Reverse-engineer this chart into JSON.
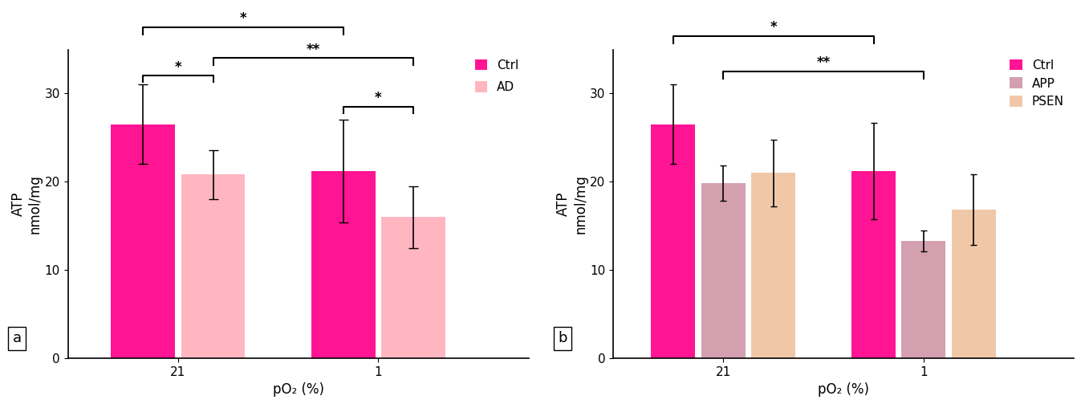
{
  "panel_a": {
    "groups": [
      "21",
      "1"
    ],
    "series": [
      "Ctrl",
      "AD"
    ],
    "values": [
      [
        26.5,
        20.8
      ],
      [
        21.2,
        16.0
      ]
    ],
    "errors": [
      [
        4.5,
        2.8
      ],
      [
        5.8,
        3.5
      ]
    ],
    "colors": [
      "#FF1493",
      "#FFB6C1"
    ],
    "bar_width": 0.35,
    "ylim": [
      0,
      35
    ],
    "yticks": [
      0,
      10,
      20,
      30
    ],
    "ylabel": "ATP\nnmol/mg",
    "xlabel": "pO₂ (%)",
    "legend_labels": [
      "Ctrl",
      "AD"
    ],
    "label": "a"
  },
  "panel_b": {
    "groups": [
      "21",
      "1"
    ],
    "series": [
      "Ctrl",
      "APP",
      "PSEN"
    ],
    "values": [
      [
        26.5,
        19.8,
        21.0
      ],
      [
        21.2,
        13.3,
        16.8
      ]
    ],
    "errors": [
      [
        4.5,
        2.0,
        3.8
      ],
      [
        5.5,
        1.2,
        4.0
      ]
    ],
    "colors": [
      "#FF1493",
      "#D4A0B0",
      "#F0C8A8"
    ],
    "bar_width": 0.25,
    "ylim": [
      0,
      35
    ],
    "yticks": [
      0,
      10,
      20,
      30
    ],
    "ylabel": "ATP\nnmol/mg",
    "xlabel": "pO₂ (%)",
    "legend_labels": [
      "Ctrl",
      "APP",
      "PSEN"
    ],
    "label": "b"
  },
  "figure": {
    "bg_color": "#FFFFFF",
    "fontsize_axis": 12,
    "fontsize_tick": 11,
    "fontsize_legend": 11,
    "fontsize_sig": 12,
    "fontsize_label": 13
  }
}
